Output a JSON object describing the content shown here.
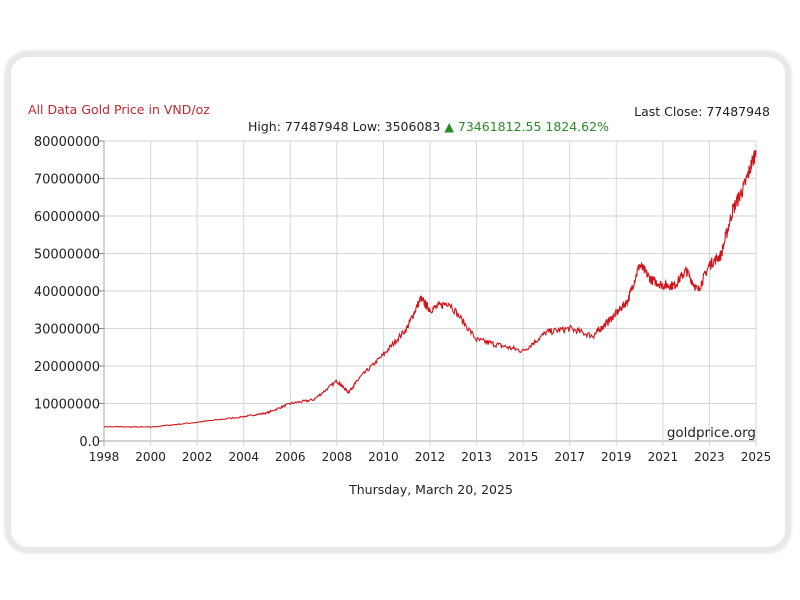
{
  "chart_data": {
    "type": "line",
    "title": "All Data Gold Price in VND/oz",
    "last_close_label": "Last Close: 77487948",
    "stats": {
      "high": "High: 77487948",
      "low": "Low: 3506083",
      "change": "▲ 73461812.55 1824.62%"
    },
    "watermark": "goldprice.org",
    "date_label": "Thursday, March 20, 2025",
    "ylim": [
      0,
      80000000
    ],
    "y_ticks": [
      "0.0",
      "10000000",
      "20000000",
      "30000000",
      "40000000",
      "50000000",
      "60000000",
      "70000000",
      "80000000"
    ],
    "x_ticks": [
      "1998",
      "2000",
      "2002",
      "2004",
      "2006",
      "2008",
      "2010",
      "2012",
      "2013",
      "2015",
      "2017",
      "2019",
      "2021",
      "2023",
      "2025"
    ],
    "grid": true,
    "series": [
      {
        "name": "Gold Price VND/oz",
        "color": "#d0141c",
        "x": [
          1998,
          2000,
          2002,
          2004,
          2005,
          2006,
          2007,
          2008,
          2008.5,
          2009,
          2010,
          2011,
          2011.6,
          2012,
          2012.4,
          2013,
          2014,
          2015,
          2016,
          2017,
          2018,
          2018.5,
          2019,
          2019.5,
          2020,
          2020.5,
          2021,
          2021.5,
          2022,
          2022.5,
          2023,
          2023.5,
          2024,
          2024.5,
          2025
        ],
        "y": [
          3800000,
          3700000,
          5000000,
          6500000,
          7500000,
          10000000,
          11000000,
          16000000,
          13000000,
          17000000,
          23000000,
          30000000,
          38000000,
          35000000,
          37000000,
          27000000,
          25500000,
          24000000,
          29000000,
          30000000,
          28000000,
          31000000,
          34000000,
          37500000,
          47000000,
          43000000,
          41500000,
          41500000,
          45500000,
          40000000,
          47000000,
          49600000,
          61600000,
          68000000,
          77487948
        ]
      }
    ]
  }
}
